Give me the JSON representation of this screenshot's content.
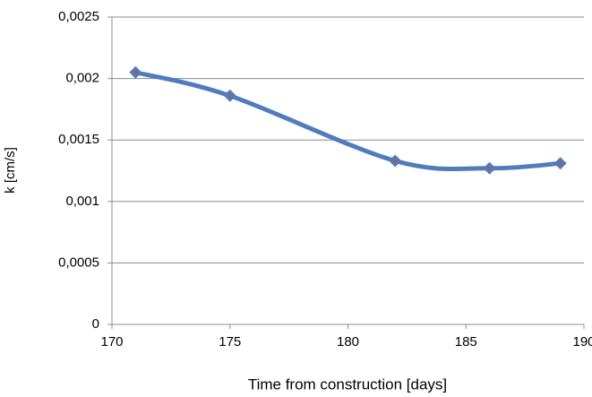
{
  "chart_data": {
    "type": "line",
    "x_label": "Time from construction [days]",
    "y_label": "k  [cm/s]",
    "x": [
      171,
      175,
      182,
      186,
      189
    ],
    "series": [
      {
        "values": [
          0.00205,
          0.00186,
          0.00133,
          0.00127,
          0.00131
        ],
        "color": "#4f7cbd",
        "marker_color": "#c0504d"
      }
    ],
    "xlim": [
      170,
      190
    ],
    "xticks": [
      170,
      175,
      180,
      185,
      190
    ],
    "ylim": [
      0,
      0.0025
    ],
    "yticks": [
      0,
      {
        "value": 0.0005,
        "label": "0,0005"
      },
      {
        "value": 0.001,
        "label": "0,001"
      },
      {
        "value": 0.0015,
        "label": "0,0015"
      },
      {
        "value": 0.002,
        "label": "0,002"
      },
      {
        "value": 0.0025,
        "label": "0,0025"
      }
    ],
    "grid": true,
    "smooth": true
  }
}
